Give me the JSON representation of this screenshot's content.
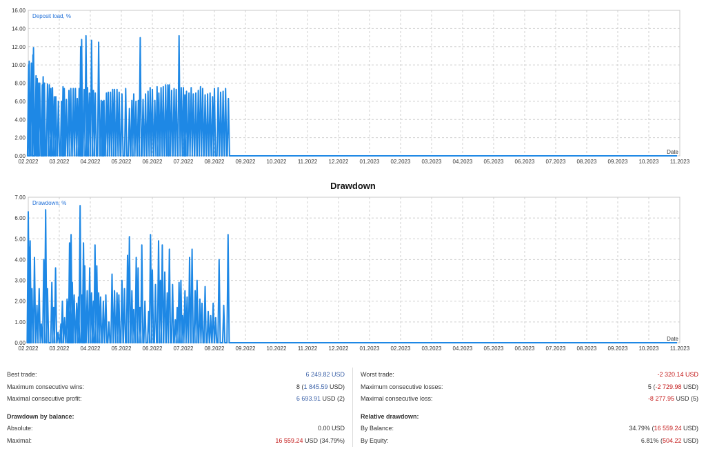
{
  "chart_data": [
    {
      "type": "line",
      "series": [
        {
          "name": "Deposit load, %"
        }
      ],
      "legend": "top-left",
      "x_end_label": "Date",
      "ylim": [
        0,
        16
      ],
      "y_ticks": [
        "16.00",
        "14.00",
        "12.00",
        "10.00",
        "8.00",
        "6.00",
        "4.00",
        "2.00",
        "0.00"
      ],
      "x_ticks": [
        "02.2022",
        "03.2022",
        "04.2022",
        "05.2022",
        "06.2022",
        "07.2022",
        "08.2022",
        "09.2022",
        "10.2022",
        "11.2022",
        "12.2022",
        "01.2023",
        "02.2023",
        "03.2023",
        "04.2023",
        "05.2023",
        "06.2023",
        "07.2023",
        "08.2023",
        "09.2023",
        "10.2023",
        "11.2023"
      ],
      "grid": true,
      "color": "#1e88e5",
      "spikes": [
        [
          0.01,
          10.0
        ],
        [
          0.03,
          10.4
        ],
        [
          0.1,
          10.2
        ],
        [
          0.15,
          11.1
        ],
        [
          0.17,
          11.9
        ],
        [
          0.25,
          8.8
        ],
        [
          0.29,
          8.5
        ],
        [
          0.32,
          8.0
        ],
        [
          0.37,
          8.0
        ],
        [
          0.45,
          7.8
        ],
        [
          0.48,
          8.7
        ],
        [
          0.52,
          8.0
        ],
        [
          0.62,
          7.9
        ],
        [
          0.68,
          7.8
        ],
        [
          0.73,
          7.4
        ],
        [
          0.78,
          7.5
        ],
        [
          0.84,
          6.5
        ],
        [
          0.89,
          6.5
        ],
        [
          0.97,
          6.0
        ],
        [
          1.07,
          6.0
        ],
        [
          1.12,
          7.6
        ],
        [
          1.16,
          7.4
        ],
        [
          1.23,
          6.2
        ],
        [
          1.31,
          7.2
        ],
        [
          1.37,
          7.4
        ],
        [
          1.45,
          7.4
        ],
        [
          1.52,
          7.4
        ],
        [
          1.58,
          6.3
        ],
        [
          1.64,
          7.4
        ],
        [
          1.69,
          12.0
        ],
        [
          1.72,
          12.8
        ],
        [
          1.8,
          7.3
        ],
        [
          1.86,
          13.2
        ],
        [
          1.91,
          7.5
        ],
        [
          1.97,
          6.9
        ],
        [
          2.04,
          12.7
        ],
        [
          2.1,
          7.2
        ],
        [
          2.16,
          6.9
        ],
        [
          2.27,
          12.5
        ],
        [
          2.35,
          6.1
        ],
        [
          2.4,
          6.0
        ],
        [
          2.44,
          6.1
        ],
        [
          2.52,
          6.9
        ],
        [
          2.58,
          7.0
        ],
        [
          2.65,
          7.0
        ],
        [
          2.72,
          7.3
        ],
        [
          2.78,
          7.3
        ],
        [
          2.86,
          7.3
        ],
        [
          2.93,
          7.0
        ],
        [
          3.02,
          6.8
        ],
        [
          3.14,
          7.4
        ],
        [
          3.26,
          5.2
        ],
        [
          3.34,
          6.1
        ],
        [
          3.4,
          6.8
        ],
        [
          3.47,
          6.0
        ],
        [
          3.55,
          6.1
        ],
        [
          3.61,
          13.0
        ],
        [
          3.7,
          6.2
        ],
        [
          3.78,
          6.8
        ],
        [
          3.86,
          7.1
        ],
        [
          3.93,
          7.5
        ],
        [
          4.0,
          7.3
        ],
        [
          4.08,
          6.1
        ],
        [
          4.15,
          7.6
        ],
        [
          4.21,
          6.9
        ],
        [
          4.28,
          7.5
        ],
        [
          4.35,
          7.6
        ],
        [
          4.43,
          7.8
        ],
        [
          4.5,
          7.8
        ],
        [
          4.55,
          7.8
        ],
        [
          4.62,
          7.2
        ],
        [
          4.7,
          7.4
        ],
        [
          4.77,
          7.3
        ],
        [
          4.86,
          13.2
        ],
        [
          4.93,
          7.5
        ],
        [
          5.0,
          7.5
        ],
        [
          5.05,
          6.7
        ],
        [
          5.1,
          7.1
        ],
        [
          5.18,
          6.9
        ],
        [
          5.25,
          7.5
        ],
        [
          5.32,
          6.8
        ],
        [
          5.4,
          6.9
        ],
        [
          5.48,
          7.2
        ],
        [
          5.55,
          7.6
        ],
        [
          5.62,
          7.4
        ],
        [
          5.7,
          6.7
        ],
        [
          5.78,
          6.8
        ],
        [
          5.86,
          6.9
        ],
        [
          5.94,
          6.5
        ],
        [
          6.0,
          7.4
        ],
        [
          6.12,
          7.5
        ],
        [
          6.2,
          7.0
        ],
        [
          6.28,
          7.1
        ],
        [
          6.36,
          7.4
        ],
        [
          6.45,
          6.3
        ]
      ]
    },
    {
      "type": "line",
      "title": "Drawdown",
      "series": [
        {
          "name": "Drawdown, %"
        }
      ],
      "legend": "top-left",
      "x_end_label": "Date",
      "ylim": [
        0,
        7
      ],
      "y_ticks": [
        "7.00",
        "6.00",
        "5.00",
        "4.00",
        "3.00",
        "2.00",
        "1.00",
        "0.00"
      ],
      "x_ticks": [
        "02.2022",
        "03.2022",
        "04.2022",
        "05.2022",
        "06.2022",
        "07.2022",
        "08.2022",
        "09.2022",
        "10.2022",
        "11.2022",
        "12.2022",
        "01.2023",
        "02.2023",
        "03.2023",
        "04.2023",
        "05.2023",
        "06.2023",
        "07.2023",
        "08.2023",
        "09.2023",
        "10.2023",
        "11.2023"
      ],
      "grid": true,
      "color": "#1e88e5",
      "spikes": [
        [
          0.0,
          6.3
        ],
        [
          0.02,
          4.6
        ],
        [
          0.06,
          4.9
        ],
        [
          0.12,
          2.6
        ],
        [
          0.2,
          4.1
        ],
        [
          0.28,
          1.8
        ],
        [
          0.35,
          2.6
        ],
        [
          0.42,
          0.9
        ],
        [
          0.5,
          4.0
        ],
        [
          0.56,
          6.4
        ],
        [
          0.62,
          2.6
        ],
        [
          0.76,
          2.9
        ],
        [
          0.82,
          1.7
        ],
        [
          0.88,
          3.6
        ],
        [
          0.96,
          0.5
        ],
        [
          1.05,
          0.9
        ],
        [
          1.1,
          2.0
        ],
        [
          1.17,
          1.2
        ],
        [
          1.25,
          2.1
        ],
        [
          1.3,
          2.0
        ],
        [
          1.33,
          4.8
        ],
        [
          1.38,
          5.2
        ],
        [
          1.42,
          2.9
        ],
        [
          1.48,
          2.3
        ],
        [
          1.56,
          1.9
        ],
        [
          1.62,
          2.2
        ],
        [
          1.67,
          6.6
        ],
        [
          1.73,
          2.3
        ],
        [
          1.78,
          4.8
        ],
        [
          1.82,
          3.7
        ],
        [
          1.9,
          2.5
        ],
        [
          1.98,
          3.6
        ],
        [
          2.04,
          2.4
        ],
        [
          2.1,
          2.0
        ],
        [
          2.15,
          4.7
        ],
        [
          2.21,
          3.7
        ],
        [
          2.27,
          2.4
        ],
        [
          2.33,
          2.2
        ],
        [
          2.42,
          2.0
        ],
        [
          2.5,
          2.3
        ],
        [
          2.6,
          1.0
        ],
        [
          2.7,
          3.3
        ],
        [
          2.78,
          2.5
        ],
        [
          2.86,
          2.4
        ],
        [
          2.92,
          2.3
        ],
        [
          3.02,
          3.0
        ],
        [
          3.1,
          2.6
        ],
        [
          3.2,
          4.2
        ],
        [
          3.26,
          5.1
        ],
        [
          3.34,
          2.5
        ],
        [
          3.4,
          1.6
        ],
        [
          3.48,
          4.1
        ],
        [
          3.54,
          3.6
        ],
        [
          3.6,
          1.7
        ],
        [
          3.66,
          4.7
        ],
        [
          3.76,
          2.0
        ],
        [
          3.88,
          1.5
        ],
        [
          3.94,
          5.2
        ],
        [
          4.0,
          3.5
        ],
        [
          4.1,
          2.8
        ],
        [
          4.2,
          4.9
        ],
        [
          4.26,
          3.0
        ],
        [
          4.32,
          4.7
        ],
        [
          4.4,
          3.4
        ],
        [
          4.48,
          2.4
        ],
        [
          4.55,
          4.5
        ],
        [
          4.65,
          2.8
        ],
        [
          4.74,
          1.1
        ],
        [
          4.8,
          1.7
        ],
        [
          4.86,
          2.9
        ],
        [
          4.92,
          3.0
        ],
        [
          4.98,
          1.3
        ],
        [
          5.05,
          2.5
        ],
        [
          5.12,
          2.2
        ],
        [
          5.2,
          4.1
        ],
        [
          5.28,
          4.5
        ],
        [
          5.38,
          2.5
        ],
        [
          5.44,
          3.0
        ],
        [
          5.53,
          2.1
        ],
        [
          5.6,
          1.9
        ],
        [
          5.7,
          2.7
        ],
        [
          5.8,
          1.5
        ],
        [
          5.88,
          1.3
        ],
        [
          5.96,
          1.9
        ],
        [
          6.04,
          1.2
        ],
        [
          6.15,
          4.0
        ],
        [
          6.3,
          1.8
        ],
        [
          6.44,
          5.2
        ]
      ]
    }
  ],
  "stats": {
    "left": {
      "best_trade": {
        "label": "Best trade:",
        "value": "6 249.82 USD"
      },
      "max_consec_wins": {
        "label": "Maximum consecutive wins:",
        "count": "8",
        "amount": "1 845.59",
        "suffix": "USD)",
        "open": "("
      },
      "max_consec_profit": {
        "label": "Maximal consecutive profit:",
        "amount": "6 693.91",
        "suffix": "USD (2)"
      },
      "dd_header": "Drawdown by balance:",
      "absolute": {
        "label": "Absolute:",
        "value": "0.00 USD"
      },
      "maximal": {
        "label": "Maximal:",
        "amount": "16 559.24",
        "suffix": "USD (34.79%)"
      }
    },
    "right": {
      "worst_trade": {
        "label": "Worst trade:",
        "value": "-2 320.14 USD"
      },
      "max_consec_losses": {
        "label": "Maximum consecutive losses:",
        "count": "5",
        "open": "(",
        "amount": "-2 729.98",
        "suffix": "USD)"
      },
      "max_consec_loss": {
        "label": "Maximal consecutive loss:",
        "amount": "-8 277.95",
        "suffix": "USD (5)"
      },
      "rel_header": "Relative drawdown:",
      "by_balance": {
        "label": "By Balance:",
        "pct": "34.79%",
        "open": "(",
        "amount": "16 559.24",
        "suffix": "USD)"
      },
      "by_equity": {
        "label": "By Equity:",
        "pct": "6.81%",
        "open": "(",
        "amount": "504.22",
        "suffix": "USD)"
      }
    }
  }
}
